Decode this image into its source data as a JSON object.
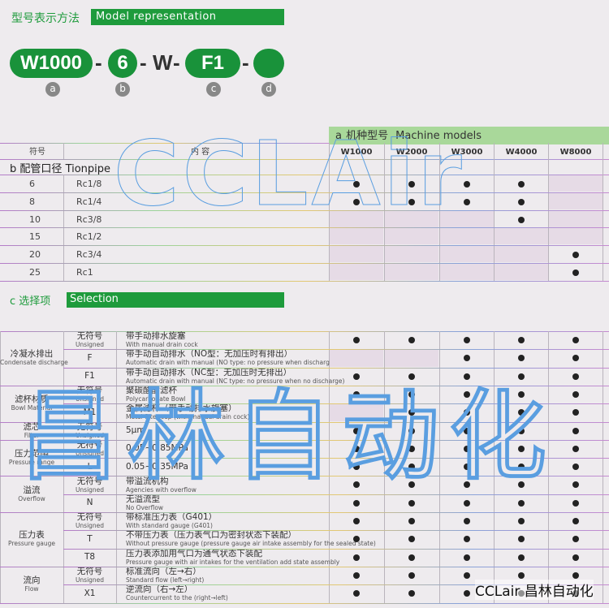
{
  "header": {
    "title_cn": "型号表示方法",
    "title_en": "Model representation"
  },
  "model_code": {
    "parts": [
      "W1000",
      "6",
      "W",
      "F1",
      ""
    ],
    "letters": [
      "a",
      "b",
      "c",
      "d"
    ]
  },
  "machine": {
    "label_letter": "a",
    "label_cn": "机种型号",
    "label_en": "Machine models",
    "models": [
      "W1000",
      "W2000",
      "W3000",
      "W4000",
      "W8000"
    ]
  },
  "pipe": {
    "col_symbol": "符号",
    "col_content": "内 容",
    "label_letter": "b",
    "label_cn": "配管口径",
    "label_en": "Tionpipe",
    "rows": [
      {
        "code": "6",
        "size": "Rc1/8",
        "avail": [
          1,
          1,
          1,
          1,
          0
        ]
      },
      {
        "code": "8",
        "size": "Rc1/4",
        "avail": [
          1,
          1,
          1,
          1,
          0
        ]
      },
      {
        "code": "10",
        "size": "Rc3/8",
        "avail": [
          0,
          0,
          0,
          1,
          0
        ]
      },
      {
        "code": "15",
        "size": "Rc1/2",
        "avail": [
          0,
          0,
          0,
          0,
          0
        ]
      },
      {
        "code": "20",
        "size": "Rc3/4",
        "avail": [
          0,
          0,
          0,
          0,
          1
        ]
      },
      {
        "code": "25",
        "size": "Rc1",
        "avail": [
          0,
          0,
          0,
          0,
          1
        ]
      }
    ]
  },
  "selection": {
    "label_letter": "c",
    "label_cn": "选择项",
    "label_en": "Selection",
    "groups": [
      {
        "cn": "冷凝水排出",
        "en": "Condensate discharge",
        "rows": 3
      },
      {
        "cn": "滤杯材质",
        "en": "Bowl Material",
        "rows": 2
      },
      {
        "cn": "滤芯",
        "en": "Filter",
        "rows": 1
      },
      {
        "cn": "压力范围",
        "en": "Pressure range",
        "rows": 2
      },
      {
        "cn": "溢流",
        "en": "Overflow",
        "rows": 2
      },
      {
        "cn": "压力表",
        "en": "Pressure gauge",
        "rows": 3
      },
      {
        "cn": "流向",
        "en": "Flow",
        "rows": 2
      }
    ],
    "rows": [
      {
        "code_cn": "无符号",
        "code_en": "Unsigned",
        "cn": "带手动排水旋塞",
        "en": "With manual drain cock",
        "avail": [
          1,
          1,
          1,
          1,
          1
        ]
      },
      {
        "code_cn": "F",
        "code_en": "",
        "cn": "带手动自动排水（NO型：无加压时有排出）",
        "en": "Automatic drain with manual (NO type: no pressure when discharged)",
        "avail": [
          0,
          0,
          1,
          1,
          1
        ]
      },
      {
        "code_cn": "F1",
        "code_en": "",
        "cn": "带手动自动排水（NC型：无加压时无排出）",
        "en": "Automatic drain with manual (NC type: no pressure when no discharge)",
        "avail": [
          1,
          1,
          1,
          1,
          1
        ]
      },
      {
        "code_cn": "无符号",
        "code_en": "Unsigned",
        "cn": "聚碳酸酯滤杯",
        "en": "Polycarbonate Bowl",
        "avail": [
          1,
          1,
          1,
          1,
          1
        ]
      },
      {
        "code_cn": "M1",
        "code_en": "",
        "cn": "金属滤杯（带手动排水旋塞）",
        "en": "Metal filter cup (with manual drain cock)",
        "avail": [
          0,
          1,
          1,
          1,
          1
        ]
      },
      {
        "code_cn": "无符号",
        "code_en": "Unsigned",
        "cn": "5μm",
        "en": "",
        "avail": [
          1,
          1,
          1,
          1,
          1
        ]
      },
      {
        "code_cn": "无符号",
        "code_en": "Unsigned",
        "cn": "0.05~0.85MPa",
        "en": "",
        "avail": [
          1,
          1,
          1,
          1,
          1
        ]
      },
      {
        "code_cn": "L",
        "code_en": "",
        "cn": "0.05~0.35MPa",
        "en": "",
        "avail": [
          1,
          1,
          1,
          1,
          1
        ]
      },
      {
        "code_cn": "无符号",
        "code_en": "Unsigned",
        "cn": "带溢流机构",
        "en": "Agencies with overflow",
        "avail": [
          1,
          1,
          1,
          1,
          1
        ]
      },
      {
        "code_cn": "N",
        "code_en": "",
        "cn": "无溢流型",
        "en": "No Overflow",
        "avail": [
          1,
          1,
          1,
          1,
          1
        ]
      },
      {
        "code_cn": "无符号",
        "code_en": "Unsigned",
        "cn": "带标准压力表（G401）",
        "en": "With standard gauge (G401)",
        "avail": [
          1,
          1,
          1,
          1,
          1
        ]
      },
      {
        "code_cn": "T",
        "code_en": "",
        "cn": "不带压力表（压力表气口为密封状态下装配）",
        "en": "Without pressure gauge (pressure gauge air intake assembly for the sealed state)",
        "avail": [
          1,
          1,
          1,
          1,
          1
        ]
      },
      {
        "code_cn": "T8",
        "code_en": "",
        "cn": "压力表添加用气口为通气状态下装配",
        "en": "Pressure gauge with air intakes for the ventilation add state assembly",
        "avail": [
          1,
          1,
          1,
          1,
          1
        ]
      },
      {
        "code_cn": "无符号",
        "code_en": "Unsigned",
        "cn": "标准流向（左→右）",
        "en": "Standard flow (left→right)",
        "avail": [
          1,
          1,
          1,
          1,
          1
        ]
      },
      {
        "code_cn": "X1",
        "code_en": "",
        "cn": "逆流向（右→左）",
        "en": "Countercurrent to the (right→left)",
        "avail": [
          1,
          1,
          1,
          1,
          1
        ]
      }
    ]
  },
  "watermark": {
    "top": "CCLAir",
    "middle": "昌林自动化",
    "corner": "CCLair 昌林自动化"
  },
  "colors": {
    "green": "#1e9b3c",
    "machine_header": "#a9d89a"
  }
}
